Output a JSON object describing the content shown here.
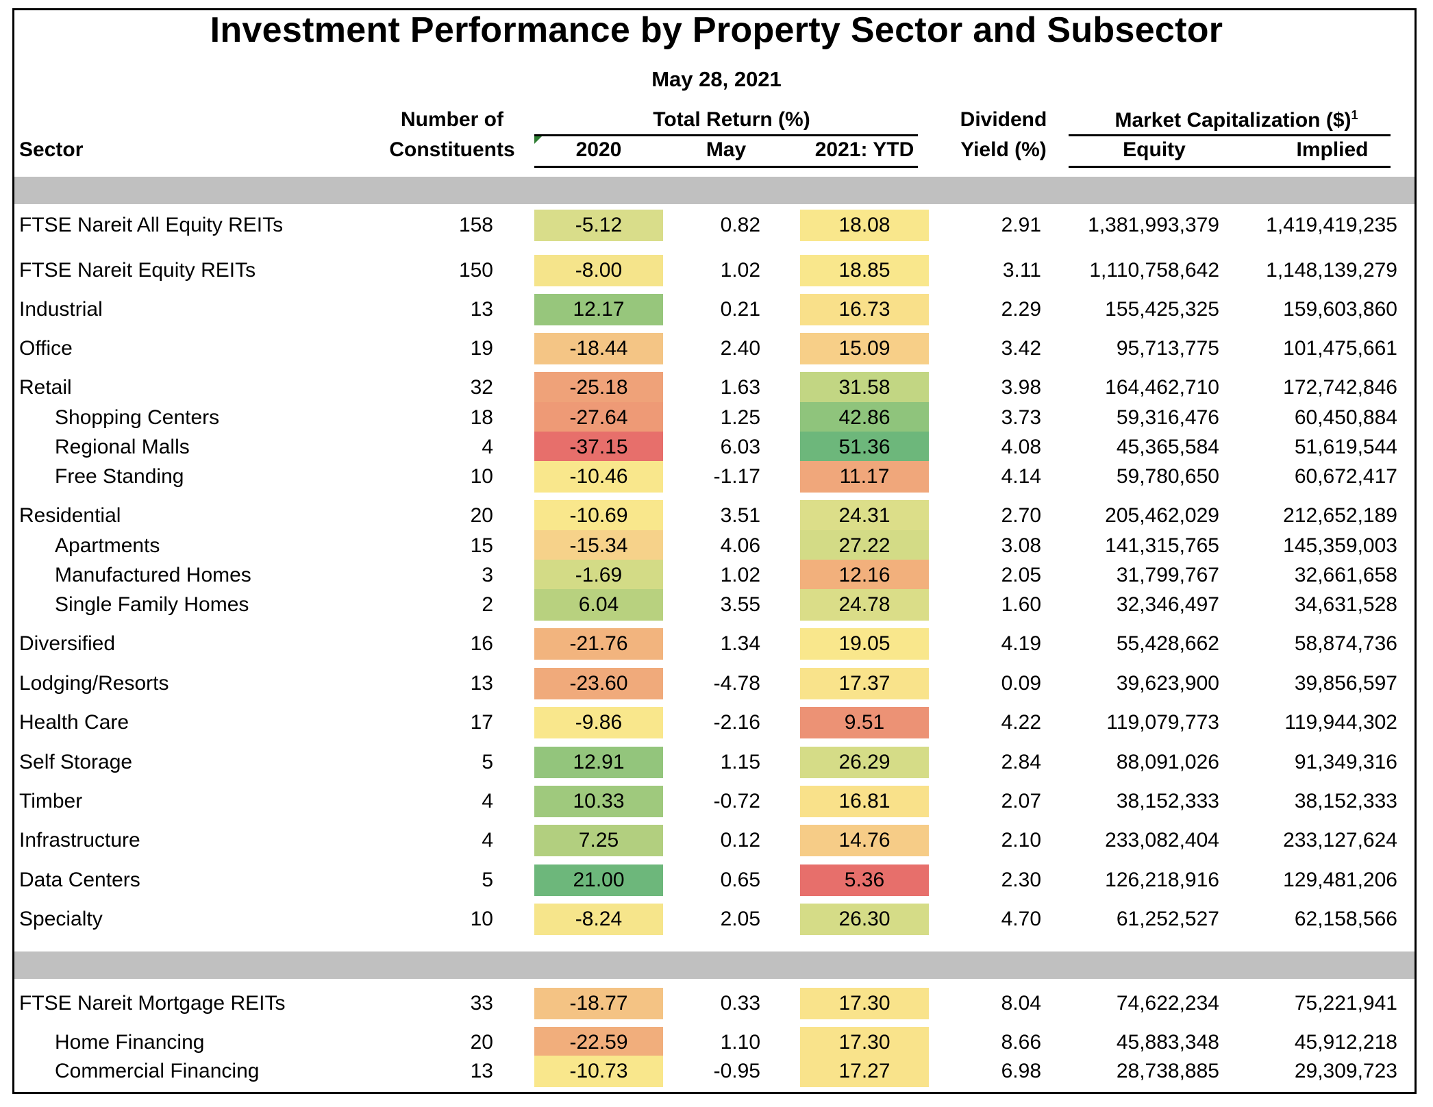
{
  "title": "Investment Performance by Property Sector and Subsector",
  "date": "May 28, 2021",
  "headers": {
    "sector": "Sector",
    "constituents_1": "Number of",
    "constituents_2": "Constituents",
    "total_return": "Total Return (%)",
    "y2020": "2020",
    "may": "May",
    "ytd": "2021: YTD",
    "dividend_1": "Dividend",
    "dividend_2": "Yield (%)",
    "market_cap": "Market Capitalization ($)",
    "market_cap_footnote": "1",
    "equity": "Equity",
    "implied": "Implied"
  },
  "colors": {
    "green_dark": "#6db77b",
    "green": "#8dc47c",
    "green_light": "#a6cc7e",
    "yellow_green": "#d3db86",
    "yellow": "#f9e78c",
    "light_orange": "#f6d28a",
    "orange": "#f2b07c",
    "salmon": "#ee9a76",
    "red": "#e76f6b",
    "band_gray": "#c0c0c0"
  },
  "rows": [
    {
      "sector": "FTSE Nareit All Equity REITs",
      "sub": false,
      "constituents": "158",
      "r2020": "-5.12",
      "c2020": "#d9dd8a",
      "may": "0.82",
      "ytd": "18.08",
      "cytd": "#f9e78c",
      "dividend": "2.91",
      "equity": "1,381,993,379",
      "implied": "1,419,419,235"
    },
    {
      "sector": "FTSE Nareit Equity REITs",
      "sub": false,
      "constituents": "150",
      "r2020": "-8.00",
      "c2020": "#f5e48b",
      "may": "1.02",
      "ytd": "18.85",
      "cytd": "#f9e78c",
      "dividend": "3.11",
      "equity": "1,110,758,642",
      "implied": "1,148,139,279"
    },
    {
      "sector": "Industrial",
      "sub": false,
      "constituents": "13",
      "r2020": "12.17",
      "c2020": "#97c67c",
      "may": "0.21",
      "ytd": "16.73",
      "cytd": "#f9e08a",
      "dividend": "2.29",
      "equity": "155,425,325",
      "implied": "159,603,860"
    },
    {
      "sector": "Office",
      "sub": false,
      "constituents": "19",
      "r2020": "-18.44",
      "c2020": "#f4c585",
      "may": "2.40",
      "ytd": "15.09",
      "cytd": "#f7cf88",
      "dividend": "3.42",
      "equity": "95,713,775",
      "implied": "101,475,661"
    },
    {
      "sector": "Retail",
      "sub": false,
      "constituents": "32",
      "r2020": "-25.18",
      "c2020": "#efa279",
      "may": "1.63",
      "ytd": "31.58",
      "cytd": "#c2d683",
      "dividend": "3.98",
      "equity": "164,462,710",
      "implied": "172,742,846"
    },
    {
      "sector": "Shopping Centers",
      "sub": true,
      "constituents": "18",
      "r2020": "-27.64",
      "c2020": "#ee9a76",
      "may": "1.25",
      "ytd": "42.86",
      "cytd": "#8fc47c",
      "dividend": "3.73",
      "equity": "59,316,476",
      "implied": "60,450,884"
    },
    {
      "sector": "Regional Malls",
      "sub": true,
      "constituents": "4",
      "r2020": "-37.15",
      "c2020": "#e76f6b",
      "may": "6.03",
      "ytd": "51.36",
      "cytd": "#6db77b",
      "dividend": "4.08",
      "equity": "45,365,584",
      "implied": "51,619,544"
    },
    {
      "sector": "Free Standing",
      "sub": true,
      "constituents": "10",
      "r2020": "-10.46",
      "c2020": "#f9e78c",
      "may": "-1.17",
      "ytd": "11.17",
      "cytd": "#f0a77b",
      "dividend": "4.14",
      "equity": "59,780,650",
      "implied": "60,672,417"
    },
    {
      "sector": "Residential",
      "sub": false,
      "constituents": "20",
      "r2020": "-10.69",
      "c2020": "#f9e78c",
      "may": "3.51",
      "ytd": "24.31",
      "cytd": "#dcde89",
      "dividend": "2.70",
      "equity": "205,462,029",
      "implied": "212,652,189"
    },
    {
      "sector": "Apartments",
      "sub": true,
      "constituents": "15",
      "r2020": "-15.34",
      "c2020": "#f6d28a",
      "may": "4.06",
      "ytd": "27.22",
      "cytd": "#d3db86",
      "dividend": "3.08",
      "equity": "141,315,765",
      "implied": "145,359,003"
    },
    {
      "sector": "Manufactured Homes",
      "sub": true,
      "constituents": "3",
      "r2020": "-1.69",
      "c2020": "#d3db86",
      "may": "1.02",
      "ytd": "12.16",
      "cytd": "#f2b07c",
      "dividend": "2.05",
      "equity": "31,799,767",
      "implied": "32,661,658"
    },
    {
      "sector": "Single Family Homes",
      "sub": true,
      "constituents": "2",
      "r2020": "6.04",
      "c2020": "#b8d17f",
      "may": "3.55",
      "ytd": "24.78",
      "cytd": "#dadd88",
      "dividend": "1.60",
      "equity": "32,346,497",
      "implied": "34,631,528"
    },
    {
      "sector": "Diversified",
      "sub": false,
      "constituents": "16",
      "r2020": "-21.76",
      "c2020": "#f2b47e",
      "may": "1.34",
      "ytd": "19.05",
      "cytd": "#f9e78c",
      "dividend": "4.19",
      "equity": "55,428,662",
      "implied": "58,874,736"
    },
    {
      "sector": "Lodging/Resorts",
      "sub": false,
      "constituents": "13",
      "r2020": "-23.60",
      "c2020": "#f0aa7b",
      "may": "-4.78",
      "ytd": "17.37",
      "cytd": "#f9e38b",
      "dividend": "0.09",
      "equity": "39,623,900",
      "implied": "39,856,597"
    },
    {
      "sector": "Health Care",
      "sub": false,
      "constituents": "17",
      "r2020": "-9.86",
      "c2020": "#f9e78c",
      "may": "-2.16",
      "ytd": "9.51",
      "cytd": "#ec9275",
      "dividend": "4.22",
      "equity": "119,079,773",
      "implied": "119,944,302"
    },
    {
      "sector": "Self Storage",
      "sub": false,
      "constituents": "5",
      "r2020": "12.91",
      "c2020": "#93c57c",
      "may": "1.15",
      "ytd": "26.29",
      "cytd": "#d5dc87",
      "dividend": "2.84",
      "equity": "88,091,026",
      "implied": "91,349,316"
    },
    {
      "sector": "Timber",
      "sub": false,
      "constituents": "4",
      "r2020": "10.33",
      "c2020": "#9fc97d",
      "may": "-0.72",
      "ytd": "16.81",
      "cytd": "#f9e18a",
      "dividend": "2.07",
      "equity": "38,152,333",
      "implied": "38,152,333"
    },
    {
      "sector": "Infrastructure",
      "sub": false,
      "constituents": "4",
      "r2020": "7.25",
      "c2020": "#b2cf7f",
      "may": "0.12",
      "ytd": "14.76",
      "cytd": "#f6cc87",
      "dividend": "2.10",
      "equity": "233,082,404",
      "implied": "233,127,624"
    },
    {
      "sector": "Data Centers",
      "sub": false,
      "constituents": "5",
      "r2020": "21.00",
      "c2020": "#6db77b",
      "may": "0.65",
      "ytd": "5.36",
      "cytd": "#e76f6b",
      "dividend": "2.30",
      "equity": "126,218,916",
      "implied": "129,481,206"
    },
    {
      "sector": "Specialty",
      "sub": false,
      "constituents": "10",
      "r2020": "-8.24",
      "c2020": "#f6e58b",
      "may": "2.05",
      "ytd": "26.30",
      "cytd": "#d5dc87",
      "dividend": "4.70",
      "equity": "61,252,527",
      "implied": "62,158,566"
    },
    {
      "sector": "FTSE Nareit Mortgage REITs",
      "sub": false,
      "constituents": "33",
      "r2020": "-18.77",
      "c2020": "#f4c384",
      "may": "0.33",
      "ytd": "17.30",
      "cytd": "#f9e38b",
      "dividend": "8.04",
      "equity": "74,622,234",
      "implied": "75,221,941"
    },
    {
      "sector": "Home Financing",
      "sub": true,
      "constituents": "20",
      "r2020": "-22.59",
      "c2020": "#f1ae7c",
      "may": "1.10",
      "ytd": "17.30",
      "cytd": "#f9e38b",
      "dividend": "8.66",
      "equity": "45,883,348",
      "implied": "45,912,218"
    },
    {
      "sector": "Commercial Financing",
      "sub": true,
      "constituents": "13",
      "r2020": "-10.73",
      "c2020": "#f9e78c",
      "may": "-0.95",
      "ytd": "17.27",
      "cytd": "#f9e38b",
      "dividend": "6.98",
      "equity": "28,738,885",
      "implied": "29,309,723"
    }
  ]
}
